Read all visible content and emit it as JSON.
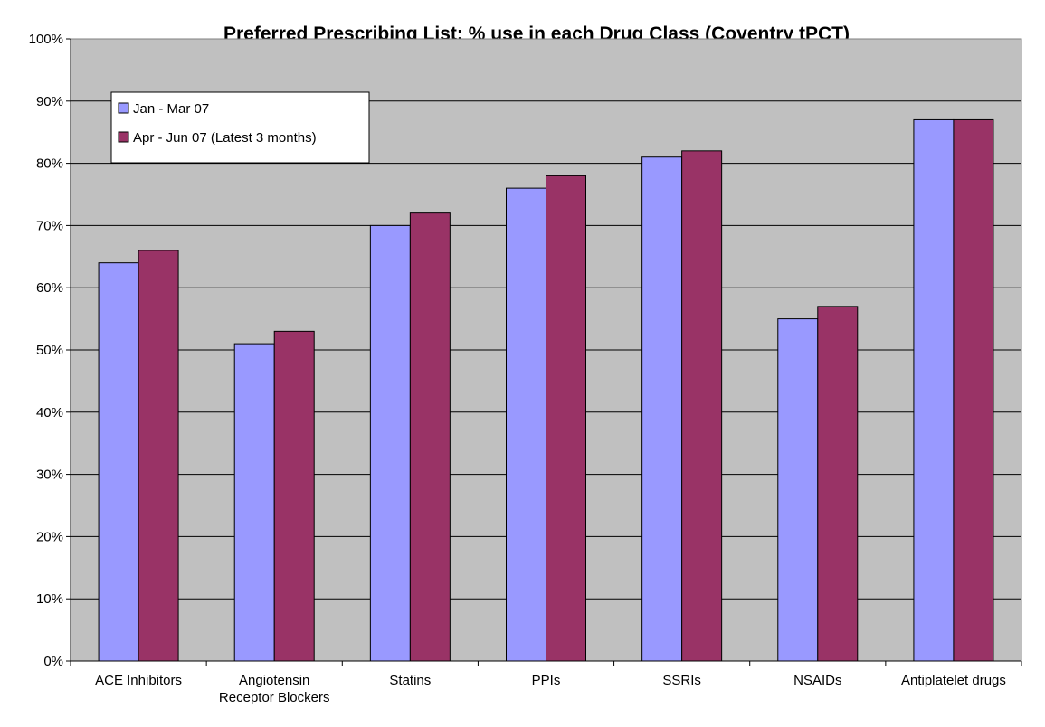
{
  "chart_data": {
    "type": "bar",
    "title": "Preferred Prescribing List: % use in each Drug Class (Coventry tPCT)",
    "xlabel": "",
    "ylabel": "",
    "ylim": [
      0,
      100
    ],
    "y_ticks": [
      "0%",
      "10%",
      "20%",
      "30%",
      "40%",
      "50%",
      "60%",
      "70%",
      "80%",
      "90%",
      "100%"
    ],
    "grid": "horizontal",
    "legend_position": "top-left",
    "plot_background": "#c0c0c0",
    "categories": [
      [
        "ACE Inhibitors"
      ],
      [
        "Angiotensin",
        "Receptor Blockers"
      ],
      [
        "Statins"
      ],
      [
        "PPIs"
      ],
      [
        "SSRIs"
      ],
      [
        "NSAIDs"
      ],
      [
        "Antiplatelet drugs"
      ]
    ],
    "series": [
      {
        "name": "Jan - Mar 07",
        "color": "#9999ff",
        "values": [
          64,
          51,
          70,
          76,
          81,
          55,
          87
        ]
      },
      {
        "name": "Apr - Jun 07 (Latest 3 months)",
        "color": "#993366",
        "values": [
          66,
          53,
          72,
          78,
          82,
          57,
          87
        ]
      }
    ]
  }
}
